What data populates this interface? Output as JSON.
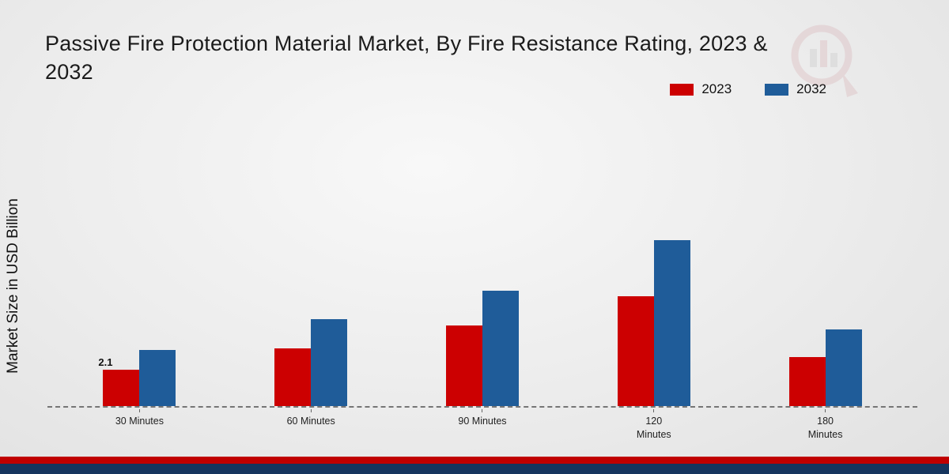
{
  "title_lines": [
    "Passive Fire Protection Material Market, By Fire Resistance Rating, 2023 &",
    "2032"
  ],
  "colors": {
    "series_2023": "#cc0001",
    "series_2032": "#1f5c99",
    "footer_red": "#c00000",
    "footer_navy": "#16355e",
    "baseline": "#757575"
  },
  "chart_data": {
    "type": "bar",
    "title": "Passive Fire Protection Material Market, By Fire Resistance Rating, 2023 & 2032",
    "ylabel": "Market Size in USD Billion",
    "xlabel": "",
    "categories": [
      "30 Minutes",
      "60 Minutes",
      "90 Minutes",
      "120 Minutes",
      "180 Minutes"
    ],
    "x_tick_labels": [
      "30 Minutes",
      "60 Minutes",
      "90 Minutes",
      "120\nMinutes",
      "180\nMinutes"
    ],
    "series": [
      {
        "name": "2023",
        "color": "#cc0001",
        "values": [
          2.1,
          3.3,
          4.6,
          6.3,
          2.8
        ]
      },
      {
        "name": "2032",
        "color": "#1f5c99",
        "values": [
          3.2,
          5.0,
          6.6,
          9.5,
          4.4
        ]
      }
    ],
    "ylim": [
      0,
      10.5
    ],
    "annotations": [
      {
        "series": "2023",
        "category": "30 Minutes",
        "text": "2.1"
      }
    ],
    "legend_position": "top-right",
    "grid": false,
    "baseline_style": "dashed"
  }
}
